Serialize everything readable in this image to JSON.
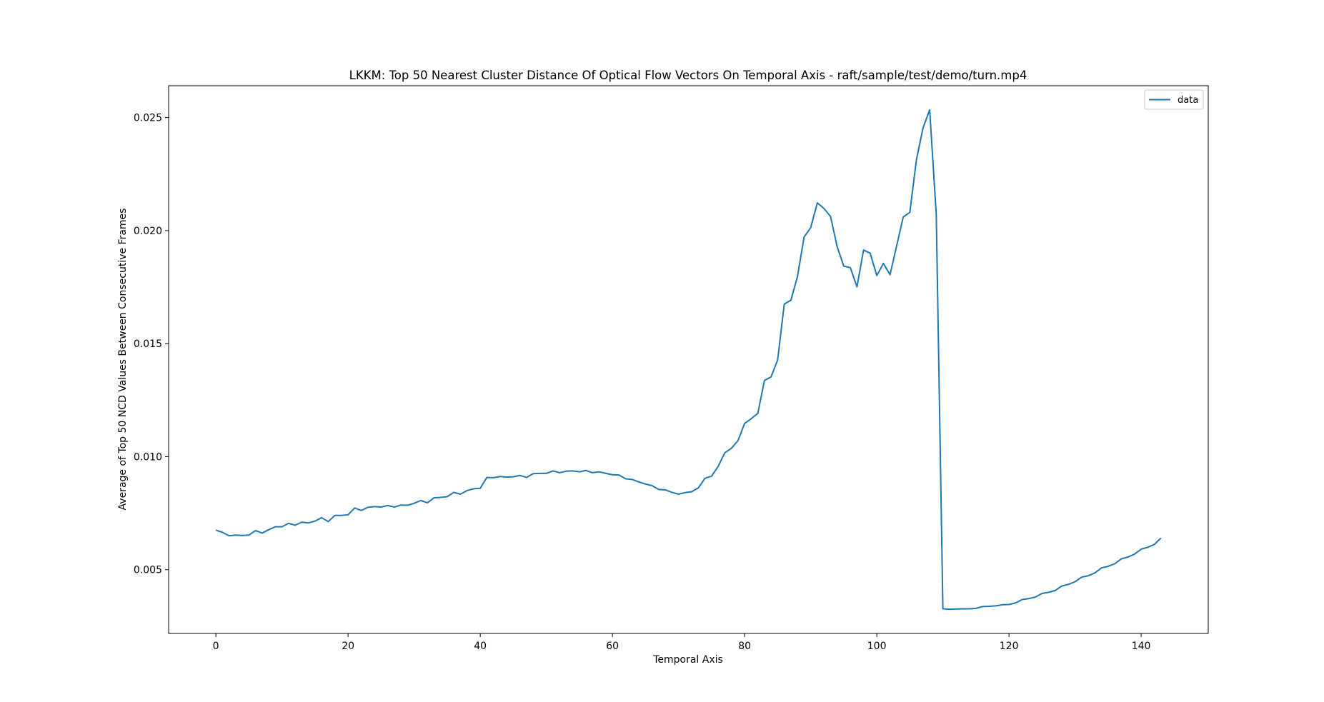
{
  "chart_data": {
    "type": "line",
    "title": "LKKM: Top 50 Nearest Cluster Distance Of Optical Flow Vectors On Temporal Axis - raft/sample/test/demo/turn.mp4",
    "xlabel": "Temporal Axis",
    "ylabel": "Average of Top 50 NCD Values Between Consecutive Frames",
    "xlim": [
      -7.15,
      150.15
    ],
    "ylim": [
      0.00218,
      0.02641
    ],
    "xticks": [
      0,
      20,
      40,
      60,
      80,
      100,
      120,
      140
    ],
    "xtick_labels": [
      "0",
      "20",
      "40",
      "60",
      "80",
      "100",
      "120",
      "140"
    ],
    "yticks": [
      0.005,
      0.01,
      0.015,
      0.02,
      0.025
    ],
    "ytick_labels": [
      "0.005",
      "0.010",
      "0.015",
      "0.020",
      "0.025"
    ],
    "grid": false,
    "legend": {
      "position": "top-right",
      "entries": [
        "data"
      ]
    },
    "colors": {
      "series": "#1f77b4"
    },
    "series": [
      {
        "name": "data",
        "x": [
          0,
          1,
          2,
          3,
          4,
          5,
          6,
          7,
          8,
          9,
          10,
          11,
          12,
          13,
          14,
          15,
          16,
          17,
          18,
          19,
          20,
          21,
          22,
          23,
          24,
          25,
          26,
          27,
          28,
          29,
          30,
          31,
          32,
          33,
          34,
          35,
          36,
          37,
          38,
          39,
          40,
          41,
          42,
          43,
          44,
          45,
          46,
          47,
          48,
          49,
          50,
          51,
          52,
          53,
          54,
          55,
          56,
          57,
          58,
          59,
          60,
          61,
          62,
          63,
          64,
          65,
          66,
          67,
          68,
          69,
          70,
          71,
          72,
          73,
          74,
          75,
          76,
          77,
          78,
          79,
          80,
          81,
          82,
          83,
          84,
          85,
          86,
          87,
          88,
          89,
          90,
          91,
          92,
          93,
          94,
          95,
          96,
          97,
          98,
          99,
          100,
          101,
          102,
          103,
          104,
          105,
          106,
          107,
          108,
          109,
          110,
          111,
          112,
          113,
          114,
          115,
          116,
          117,
          118,
          119,
          120,
          121,
          122,
          123,
          124,
          125,
          126,
          127,
          128,
          129,
          130,
          131,
          132,
          133,
          134,
          135,
          136,
          137,
          138,
          139,
          140,
          141,
          142,
          143
        ],
        "values": [
          0.00675,
          0.00665,
          0.0065,
          0.00653,
          0.00651,
          0.00653,
          0.00673,
          0.00662,
          0.00677,
          0.0069,
          0.0069,
          0.00705,
          0.00697,
          0.0071,
          0.00707,
          0.00715,
          0.0073,
          0.00713,
          0.0074,
          0.0074,
          0.00743,
          0.00773,
          0.00762,
          0.00776,
          0.00779,
          0.00777,
          0.00784,
          0.00777,
          0.00786,
          0.00785,
          0.00794,
          0.00806,
          0.00796,
          0.00818,
          0.0082,
          0.00823,
          0.00842,
          0.00834,
          0.0085,
          0.00858,
          0.0086,
          0.00908,
          0.00907,
          0.00912,
          0.0091,
          0.00911,
          0.00917,
          0.00908,
          0.00925,
          0.00926,
          0.00926,
          0.00937,
          0.00929,
          0.00936,
          0.00937,
          0.00933,
          0.00939,
          0.00929,
          0.00933,
          0.00926,
          0.0092,
          0.00919,
          0.00902,
          0.00899,
          0.00888,
          0.00879,
          0.00872,
          0.00855,
          0.00853,
          0.00842,
          0.00834,
          0.00841,
          0.00845,
          0.00862,
          0.00904,
          0.00914,
          0.00957,
          0.01017,
          0.01037,
          0.01071,
          0.01147,
          0.01168,
          0.01192,
          0.01337,
          0.01353,
          0.01428,
          0.01675,
          0.01692,
          0.01797,
          0.01972,
          0.02013,
          0.02123,
          0.02098,
          0.02063,
          0.01929,
          0.01843,
          0.01836,
          0.01751,
          0.01914,
          0.019,
          0.01801,
          0.01855,
          0.01805,
          0.01932,
          0.0206,
          0.02081,
          0.02314,
          0.02455,
          0.02534,
          0.0207,
          0.00327,
          0.00325,
          0.00326,
          0.00327,
          0.00327,
          0.00329,
          0.00337,
          0.00338,
          0.0034,
          0.00345,
          0.00346,
          0.00353,
          0.00368,
          0.00372,
          0.00379,
          0.00395,
          0.004,
          0.00408,
          0.00428,
          0.00435,
          0.00447,
          0.00467,
          0.00473,
          0.00486,
          0.00508,
          0.00515,
          0.00526,
          0.00548,
          0.00556,
          0.00569,
          0.00591,
          0.00599,
          0.00612,
          0.0064
        ]
      }
    ]
  }
}
